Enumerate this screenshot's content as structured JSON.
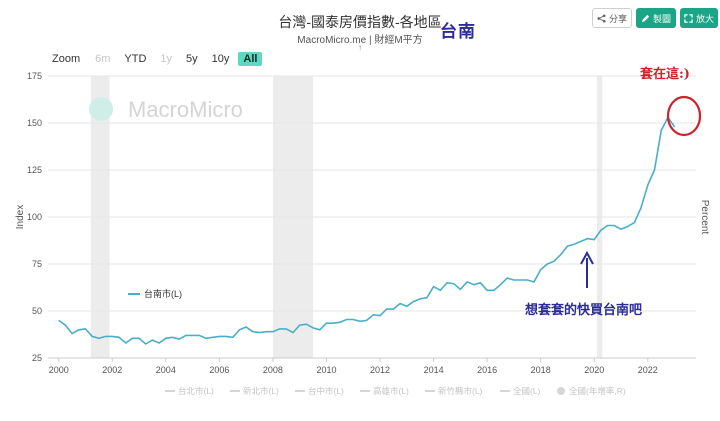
{
  "header": {
    "title": "台灣-國泰房價指數-各地區",
    "subtitle": "MacroMicro.me | 財經M平方",
    "subtitle_mark": "↑",
    "handwritten_title": "台南"
  },
  "toolbar": {
    "share_label": "分享",
    "draw_label": "製圖",
    "zoom_label": "放大",
    "share_icon": "share-icon",
    "draw_icon": "pencil-icon",
    "expand_icon": "expand-icon"
  },
  "range_selector": {
    "label": "Zoom",
    "buttons": [
      {
        "label": "6m",
        "state": "disabled"
      },
      {
        "label": "YTD",
        "state": "normal"
      },
      {
        "label": "1y",
        "state": "disabled"
      },
      {
        "label": "5y",
        "state": "normal"
      },
      {
        "label": "10y",
        "state": "normal"
      },
      {
        "label": "All",
        "state": "active"
      }
    ]
  },
  "watermark": "MacroMicro",
  "annotations": {
    "peak_note": "套在這:)",
    "arrow_note": "想套套的快買台南吧",
    "circle_color": "#d0202a",
    "arrow_color": "#2b2b9a"
  },
  "chart_data": {
    "type": "line",
    "ylabel": "Index",
    "ylabel_right": "Percent",
    "ylim": [
      25,
      175
    ],
    "yticks": [
      25,
      50,
      75,
      100,
      125,
      150,
      175
    ],
    "xlim": [
      1999.6,
      2023.8
    ],
    "xticks": [
      2000,
      2002,
      2004,
      2006,
      2008,
      2010,
      2012,
      2014,
      2016,
      2018,
      2020,
      2022
    ],
    "grid": true,
    "line_color": "#4aaec9",
    "recessions": [
      [
        2001.2,
        2001.9
      ],
      [
        2008.0,
        2009.5
      ],
      [
        2020.1,
        2020.3
      ]
    ],
    "series": [
      {
        "name": "台南市(L)",
        "x": [
          2000.0,
          2000.25,
          2000.5,
          2000.75,
          2001.0,
          2001.25,
          2001.5,
          2001.75,
          2002.0,
          2002.25,
          2002.5,
          2002.75,
          2003.0,
          2003.25,
          2003.5,
          2003.75,
          2004.0,
          2004.25,
          2004.5,
          2004.75,
          2005.0,
          2005.25,
          2005.5,
          2005.75,
          2006.0,
          2006.25,
          2006.5,
          2006.75,
          2007.0,
          2007.25,
          2007.5,
          2007.75,
          2008.0,
          2008.25,
          2008.5,
          2008.75,
          2009.0,
          2009.25,
          2009.5,
          2009.75,
          2010.0,
          2010.25,
          2010.5,
          2010.75,
          2011.0,
          2011.25,
          2011.5,
          2011.75,
          2012.0,
          2012.25,
          2012.5,
          2012.75,
          2013.0,
          2013.25,
          2013.5,
          2013.75,
          2014.0,
          2014.25,
          2014.5,
          2014.75,
          2015.0,
          2015.25,
          2015.5,
          2015.75,
          2016.0,
          2016.25,
          2016.5,
          2016.75,
          2017.0,
          2017.25,
          2017.5,
          2017.75,
          2018.0,
          2018.25,
          2018.5,
          2018.75,
          2019.0,
          2019.25,
          2019.5,
          2019.75,
          2020.0,
          2020.25,
          2020.5,
          2020.75,
          2021.0,
          2021.25,
          2021.5,
          2021.75,
          2022.0,
          2022.25,
          2022.5,
          2022.75,
          2023.0
        ],
        "values": [
          45,
          42.5,
          38,
          40,
          40.5,
          36.5,
          35.5,
          36.5,
          36.5,
          36,
          33,
          35.5,
          35.5,
          32.5,
          34.5,
          33,
          35.5,
          36,
          35,
          37,
          37,
          37,
          35.5,
          36,
          36.5,
          36.5,
          36,
          40,
          41.5,
          39,
          38.5,
          39,
          39,
          40.5,
          40.5,
          38.5,
          42.5,
          43,
          41,
          40,
          43.5,
          43.5,
          44,
          45.5,
          45.5,
          44.5,
          45,
          48,
          47.5,
          51,
          51,
          54,
          52.5,
          55,
          56.5,
          57,
          63,
          61,
          65,
          64.5,
          61.5,
          65.5,
          64,
          65,
          61,
          61,
          64,
          67.5,
          66.5,
          66.5,
          66.5,
          65.5,
          72,
          75,
          76.5,
          80,
          84.5,
          85.5,
          87,
          88.5,
          88,
          93,
          95.5,
          95.5,
          93.5,
          95,
          97,
          105,
          117,
          125,
          146,
          153,
          148
        ]
      }
    ],
    "legend": {
      "label": "台南市(L)",
      "placement": "left-inside"
    },
    "bottom_legend": [
      "台北市(L)",
      "新北市(L)",
      "台中市(L)",
      "高雄市(L)",
      "新竹縣市(L)",
      "全國(L)",
      "全國(年增率,R)"
    ]
  }
}
